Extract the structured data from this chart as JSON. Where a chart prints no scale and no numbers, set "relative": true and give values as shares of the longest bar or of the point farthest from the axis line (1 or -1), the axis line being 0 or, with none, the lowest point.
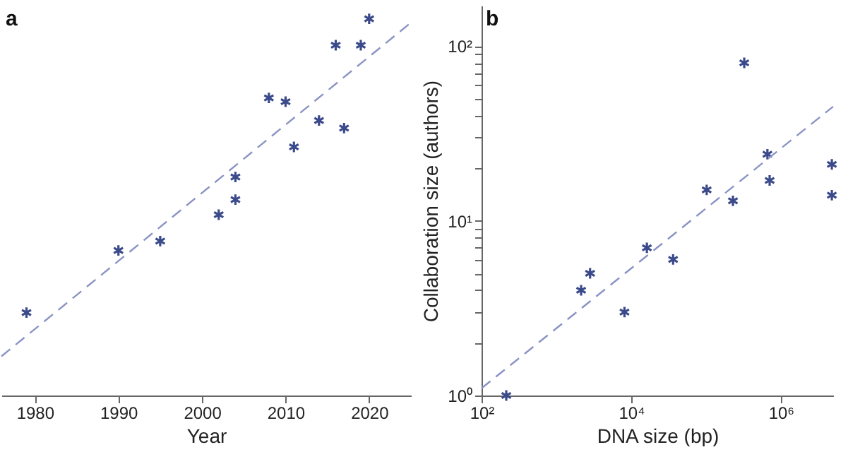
{
  "chart_data": [
    {
      "type": "scatter",
      "title": "a",
      "xlabel": "Year",
      "relative": true,
      "tick_labels": "x",
      "grid": false,
      "marker": "cross",
      "xlim": [
        1976,
        2025
      ],
      "xticks": [
        1980,
        1990,
        2000,
        2010,
        2020
      ],
      "series": [
        {
          "color": "#3b4a8a",
          "x": [
            1979,
            1990,
            1995,
            2002,
            2004,
            2004,
            2008,
            2010,
            2011,
            2014,
            2016,
            2017,
            2019,
            2020
          ],
          "values": [
            0.22,
            0.385,
            0.41,
            0.48,
            0.52,
            0.58,
            0.79,
            0.78,
            0.66,
            0.73,
            0.93,
            0.71,
            0.93,
            1.0
          ]
        },
        {
          "type": "line",
          "marker": "none",
          "line_style": "dashed",
          "color": "#8a93c4",
          "x": [
            1976,
            2025
          ],
          "values": [
            0.104,
            0.99
          ]
        }
      ]
    },
    {
      "type": "scatter",
      "title": "b",
      "xlabel": "DNA size (bp)",
      "ylabel": "Collaboration size (authors)",
      "log": "xy",
      "grid": false,
      "marker": "cross",
      "xlim": [
        100,
        5000000
      ],
      "ylim": [
        1,
        170
      ],
      "xticks": [
        {
          "value": 100,
          "label": "10²"
        },
        {
          "value": 10000,
          "label": "10⁴"
        },
        {
          "value": 1000000,
          "label": "10⁶"
        }
      ],
      "yticks": [
        {
          "value": 1,
          "label": "10⁰"
        },
        {
          "value": 2,
          "label": null
        },
        {
          "value": 3,
          "label": null
        },
        {
          "value": 4,
          "label": null
        },
        {
          "value": 5,
          "label": null
        },
        {
          "value": 6,
          "label": null
        },
        {
          "value": 7,
          "label": null
        },
        {
          "value": 8,
          "label": null
        },
        {
          "value": 9,
          "label": null
        },
        {
          "value": 10,
          "label": "10¹"
        },
        {
          "value": 20,
          "label": null
        },
        {
          "value": 30,
          "label": null
        },
        {
          "value": 40,
          "label": null
        },
        {
          "value": 50,
          "label": null
        },
        {
          "value": 60,
          "label": null
        },
        {
          "value": 70,
          "label": null
        },
        {
          "value": 80,
          "label": null
        },
        {
          "value": 90,
          "label": null
        },
        {
          "value": 100,
          "label": "10²"
        }
      ],
      "series": [
        {
          "color": "#3b4a8a",
          "x": [
            214,
            2140,
            2820,
            8130,
            16200,
            36300,
            102000,
            229000,
            324000,
            661000,
            708000,
            4800000,
            4800000
          ],
          "values": [
            1,
            4,
            5,
            3,
            7,
            6,
            15,
            13,
            80,
            24,
            17,
            21,
            14
          ]
        },
        {
          "type": "line",
          "marker": "none",
          "line_style": "dashed",
          "color": "#8a93c4",
          "x": [
            100,
            5000000
          ],
          "values": [
            1.1,
            45
          ]
        }
      ]
    }
  ]
}
